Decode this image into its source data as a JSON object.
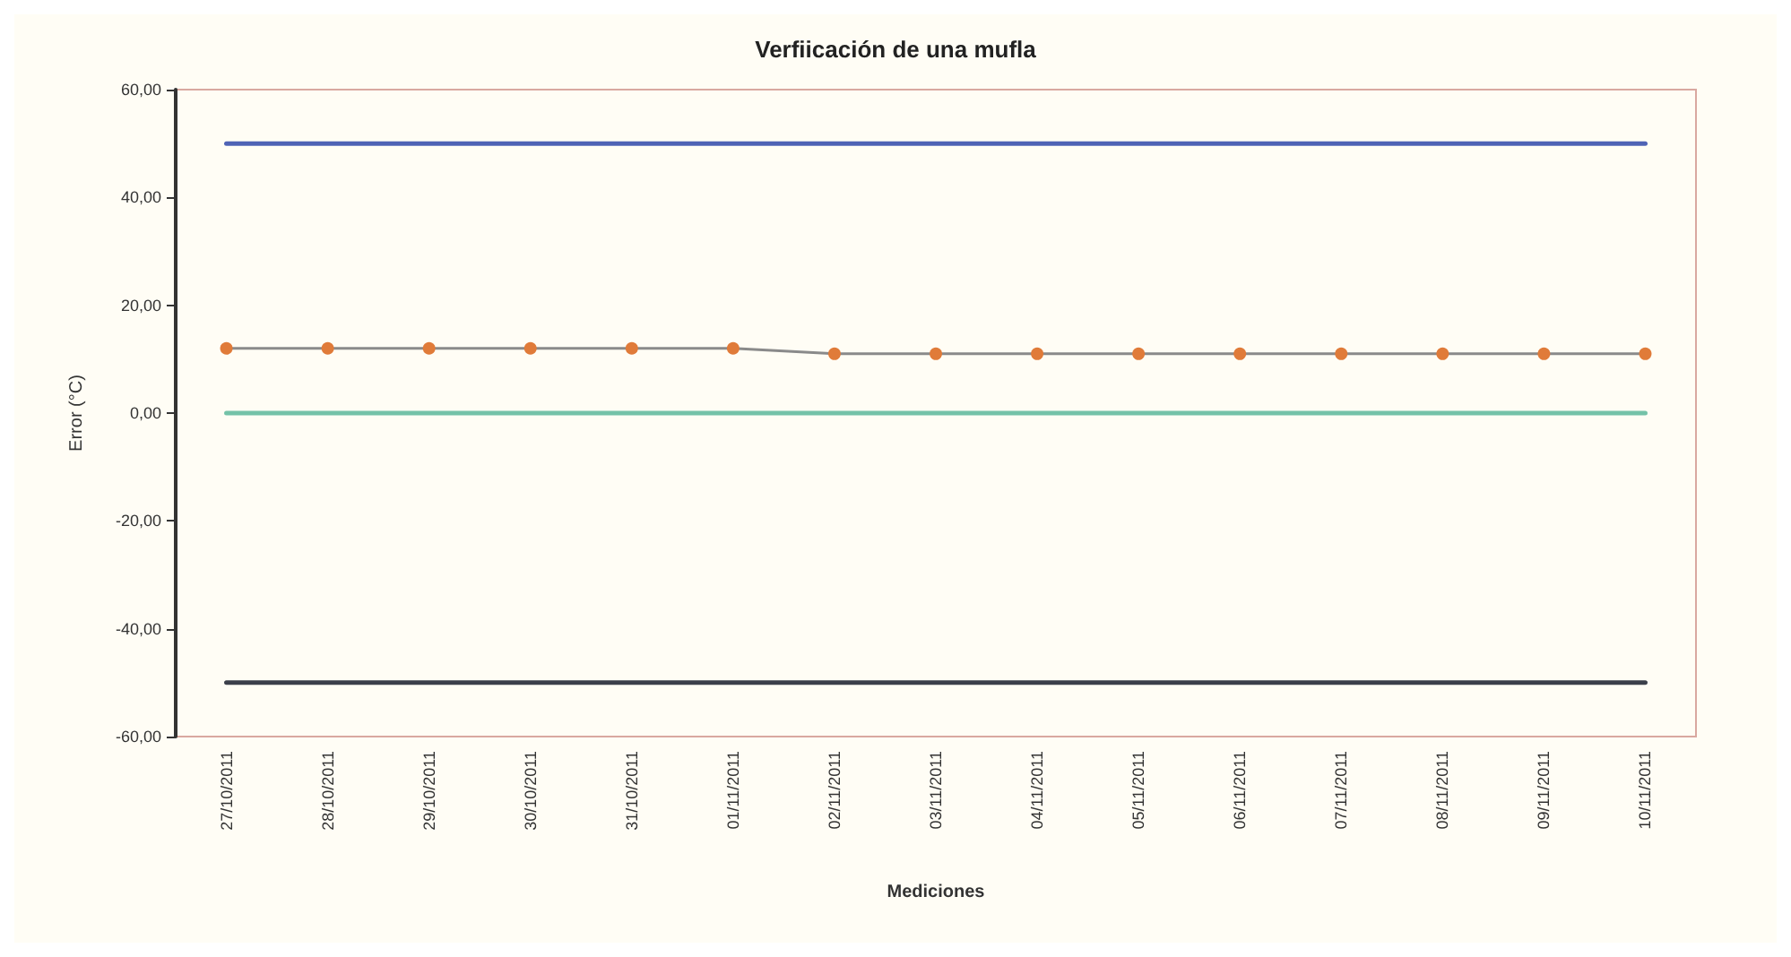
{
  "chart_data": {
    "type": "line",
    "title": "Verfiicación de una mufla",
    "xlabel": "Mediciones",
    "ylabel": "Error (°C)",
    "categories": [
      "27/10/2011",
      "28/10/2011",
      "29/10/2011",
      "30/10/2011",
      "31/10/2011",
      "01/11/2011",
      "02/11/2011",
      "03/11/2011",
      "04/11/2011",
      "05/11/2011",
      "06/11/2011",
      "07/11/2011",
      "08/11/2011",
      "09/11/2011",
      "10/11/2011"
    ],
    "series": [
      {
        "color": "#4f63b5",
        "marker": "none",
        "values": [
          50,
          50,
          50,
          50,
          50,
          50,
          50,
          50,
          50,
          50,
          50,
          50,
          50,
          50,
          50
        ]
      },
      {
        "color": "#e07b39",
        "marker": "circle",
        "values": [
          12,
          12,
          12,
          12,
          12,
          12,
          11,
          11,
          11,
          11,
          11,
          11,
          11,
          11,
          11
        ]
      },
      {
        "color": "#74c2a8",
        "marker": "none",
        "values": [
          0,
          0,
          0,
          0,
          0,
          0,
          0,
          0,
          0,
          0,
          0,
          0,
          0,
          0,
          0
        ]
      },
      {
        "color": "#3b3f4a",
        "marker": "none",
        "values": [
          -50,
          -50,
          -50,
          -50,
          -50,
          -50,
          -50,
          -50,
          -50,
          -50,
          -50,
          -50,
          -50,
          -50,
          -50
        ]
      }
    ],
    "ylim": [
      -60,
      60
    ],
    "yticks": [
      {
        "value": -60,
        "label": "-60,00"
      },
      {
        "value": -40,
        "label": "-40,00"
      },
      {
        "value": -20,
        "label": "-20,00"
      },
      {
        "value": 0,
        "label": "0,00"
      },
      {
        "value": 20,
        "label": "20,00"
      },
      {
        "value": 40,
        "label": "40,00"
      },
      {
        "value": 60,
        "label": "60,00"
      }
    ],
    "grid": false,
    "line_style": "solid"
  }
}
